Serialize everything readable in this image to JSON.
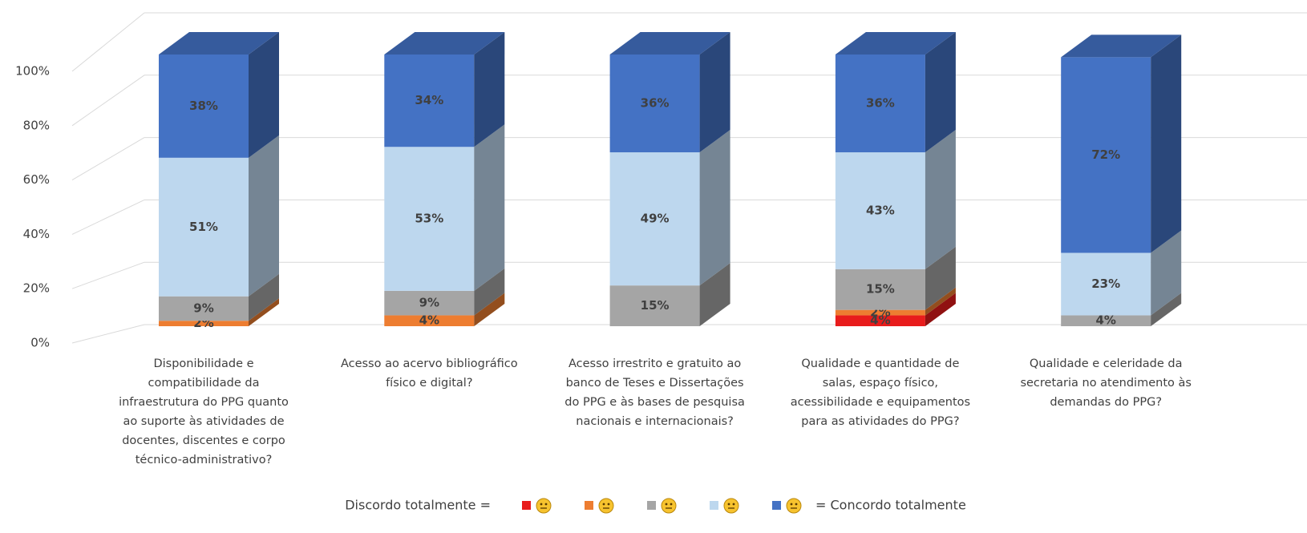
{
  "chart_data": {
    "type": "bar3d_stacked",
    "categories": [
      "Disponibilidade e\ncompatibilidade da\ninfraestrutura do PPG quanto\nao suporte às atividades de\ndocentes, discentes e corpo\ntécnico-administrativo?",
      "Acesso ao acervo bibliográfico\nfísico e digital?",
      "Acesso irrestrito e gratuito ao\nbanco de Teses e Dissertações\ndo PPG e às bases de pesquisa\nnacionais e internacionais?",
      "Qualidade e quantidade de\nsalas, espaço físico,\nacessibilidade e equipamentos\npara as atividades do PPG?",
      "Qualidade e celeridade da\nsecretaria no atendimento às\ndemandas do PPG?"
    ],
    "series": [
      {
        "color": "#e81c1c",
        "values": [
          0,
          0,
          0,
          4,
          0
        ],
        "value_labels": [
          null,
          null,
          null,
          "4%",
          null
        ]
      },
      {
        "color": "#ed7d31",
        "values": [
          2,
          4,
          0,
          2,
          0
        ],
        "value_labels": [
          "2%",
          "4%",
          null,
          "2%",
          null
        ]
      },
      {
        "color": "#a5a5a5",
        "values": [
          9,
          9,
          15,
          15,
          4
        ],
        "value_labels": [
          "9%",
          "9%",
          "15%",
          "15%",
          "4%"
        ]
      },
      {
        "color": "#bdd7ee",
        "values": [
          51,
          53,
          49,
          43,
          23
        ],
        "value_labels": [
          "51%",
          "53%",
          "49%",
          "43%",
          "23%"
        ]
      },
      {
        "color": "#4472c4",
        "values": [
          38,
          34,
          36,
          36,
          72
        ],
        "value_labels": [
          "38%",
          "34%",
          "36%",
          "36%",
          "72%"
        ]
      }
    ],
    "legend_left": "Discordo totalmente =",
    "legend_right": "= Concordo totalmente",
    "ylim": [
      0,
      100
    ],
    "yticks": [
      {
        "value": 0,
        "label": "0%"
      },
      {
        "value": 20,
        "label": "20%"
      },
      {
        "value": 40,
        "label": "40%"
      },
      {
        "value": 60,
        "label": "60%"
      },
      {
        "value": 80,
        "label": "80%"
      },
      {
        "value": 100,
        "label": "100%"
      }
    ],
    "grid": true
  }
}
